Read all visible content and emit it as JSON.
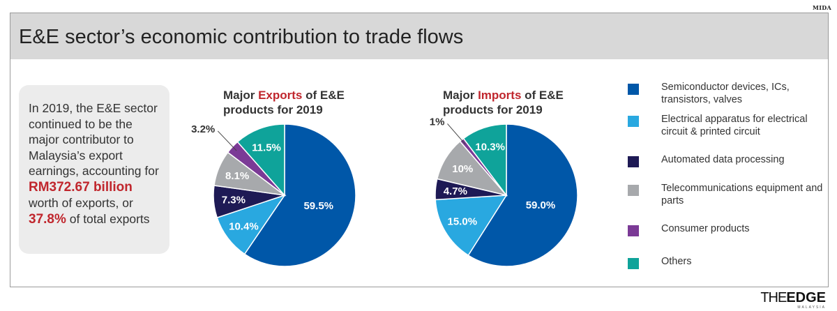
{
  "source": "MIDA",
  "title": "E&E sector’s economic contribution to trade flows",
  "summary": {
    "line1": "In 2019, the E&E sector continued to be the major contributor to Malaysia’s export earnings, accounting for ",
    "amount": "RM372.67 billion",
    "line2": " worth of exports, or ",
    "percent": "37.8%",
    "line3": " of total exports"
  },
  "colors": {
    "semiconductor": "#0057a8",
    "electrical": "#29a8e0",
    "automated": "#1e1a55",
    "telecom": "#a7a9ac",
    "consumer": "#7b3a96",
    "others": "#0fa39a",
    "accent_red": "#c0262d"
  },
  "chart_data": [
    {
      "type": "pie",
      "title_prefix": "Major ",
      "title_highlight": "Exports",
      "title_suffix": " of E&E",
      "title_line2": "products for 2019",
      "slices": [
        {
          "key": "semiconductor",
          "label": "Semiconductor devices, ICs, transistors, valves",
          "value": 59.5,
          "text": "59.5%"
        },
        {
          "key": "electrical",
          "label": "Electrical apparatus for electrical circuit & printed circuit",
          "value": 10.4,
          "text": "10.4%"
        },
        {
          "key": "automated",
          "label": "Automated data processing",
          "value": 7.3,
          "text": "7.3%"
        },
        {
          "key": "telecom",
          "label": "Telecommunications equipment and parts",
          "value": 8.1,
          "text": "8.1%"
        },
        {
          "key": "consumer",
          "label": "Consumer products",
          "value": 3.2,
          "text": "3.2%"
        },
        {
          "key": "others",
          "label": "Others",
          "value": 11.5,
          "text": "11.5%"
        }
      ]
    },
    {
      "type": "pie",
      "title_prefix": "Major ",
      "title_highlight": "Imports",
      "title_suffix": " of E&E",
      "title_line2": "products for 2019",
      "slices": [
        {
          "key": "semiconductor",
          "label": "Semiconductor devices, ICs, transistors, valves",
          "value": 59.0,
          "text": "59.0%"
        },
        {
          "key": "electrical",
          "label": "Electrical apparatus for electrical circuit & printed circuit",
          "value": 15.0,
          "text": "15.0%"
        },
        {
          "key": "automated",
          "label": "Automated data processing",
          "value": 4.7,
          "text": "4.7%"
        },
        {
          "key": "telecom",
          "label": "Telecommunications equipment and parts",
          "value": 10,
          "text": "10%"
        },
        {
          "key": "consumer",
          "label": "Consumer products",
          "value": 1,
          "text": "1%"
        },
        {
          "key": "others",
          "label": "Others",
          "value": 10.3,
          "text": "10.3%"
        }
      ]
    }
  ],
  "legend": [
    {
      "key": "semiconductor",
      "label": "Semiconductor devices, ICs, transistors, valves"
    },
    {
      "key": "electrical",
      "label": "Electrical apparatus for electrical circuit & printed circuit"
    },
    {
      "key": "automated",
      "label": "Automated data processing"
    },
    {
      "key": "telecom",
      "label": "Telecommunications equipment and parts"
    },
    {
      "key": "consumer",
      "label": "Consumer products"
    },
    {
      "key": "others",
      "label": "Others"
    }
  ],
  "logo": {
    "the": "THE",
    "edge": "EDGE",
    "sub": "MALAYSIA"
  }
}
